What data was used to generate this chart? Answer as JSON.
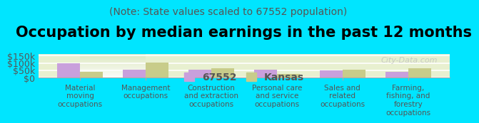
{
  "title": "Occupation by median earnings in the past 12 months",
  "subtitle": "(Note: State values scaled to 67552 population)",
  "categories": [
    "Material\nmoving\noccupations",
    "Management\noccupations",
    "Construction\nand extraction\noccupations",
    "Personal care\nand service\noccupations",
    "Sales and\nrelated\noccupations",
    "Farming,\nfishing, and\nforestry\noccupations"
  ],
  "values_67552": [
    97000,
    57000,
    55000,
    55000,
    50000,
    40000
  ],
  "values_kansas": [
    40000,
    105000,
    63000,
    25000,
    53000,
    63000
  ],
  "color_67552": "#c9a0dc",
  "color_kansas": "#c8cc8a",
  "background_color": "#00e5ff",
  "plot_bg_gradient_top": "#f0f7e0",
  "plot_bg_gradient_bottom": "#ffffff",
  "ylim": [
    0,
    160000
  ],
  "yticks": [
    0,
    50000,
    100000,
    150000
  ],
  "ytick_labels": [
    "$0",
    "$50k",
    "$100k",
    "$150k"
  ],
  "legend_label_67552": "67552",
  "legend_label_kansas": "Kansas",
  "watermark": "City-Data.com",
  "title_fontsize": 15,
  "subtitle_fontsize": 10,
  "tick_fontsize": 9,
  "bar_width": 0.35
}
